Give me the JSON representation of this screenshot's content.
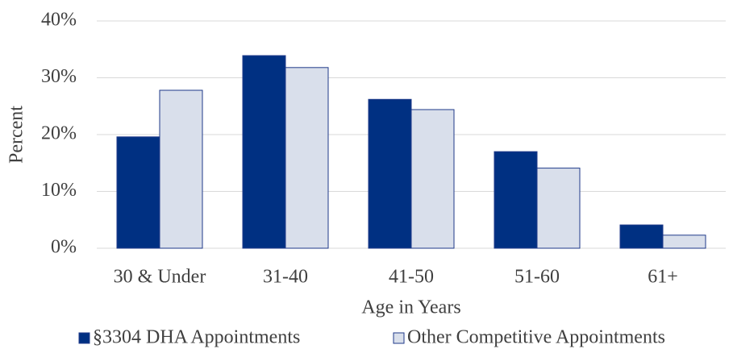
{
  "chart_data": {
    "type": "bar",
    "x_label": "Age in Years",
    "y_label": "Percent",
    "categories": [
      "30 & Under",
      "31-40",
      "41-50",
      "51-60",
      "61+"
    ],
    "series": [
      {
        "name": "§3304 DHA Appointments",
        "color": "#003082",
        "values": [
          19.6,
          33.9,
          26.2,
          17.0,
          4.1
        ]
      },
      {
        "name": "Other Competitive Appointments",
        "color": "#d9dfeb",
        "values": [
          27.8,
          31.8,
          24.4,
          14.1,
          2.3
        ]
      }
    ],
    "ylim": [
      0,
      40
    ],
    "yticks": [
      {
        "value": 0,
        "label": "0%"
      },
      {
        "value": 10,
        "label": "10%"
      },
      {
        "value": 20,
        "label": "20%"
      },
      {
        "value": 30,
        "label": "30%"
      },
      {
        "value": 40,
        "label": "40%"
      }
    ],
    "grid": true,
    "legend": "bottom"
  }
}
